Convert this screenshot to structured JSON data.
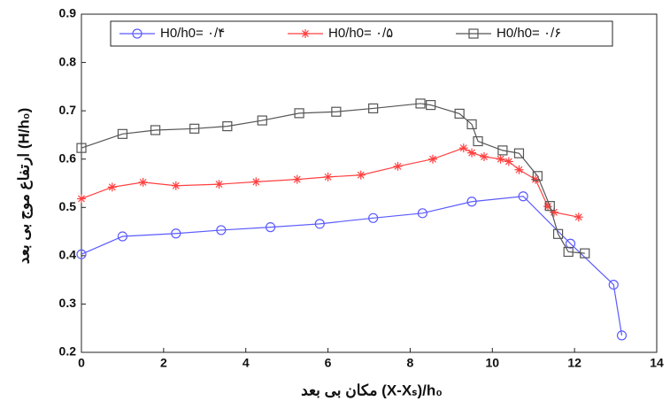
{
  "chart_data": {
    "type": "line",
    "x_label": "مکان بی بعد (X-Xₛ)/h₀",
    "y_label": "ارتفاع موج بی بعد (H/h₀)",
    "xlim": [
      0,
      14
    ],
    "xticks": [
      0,
      2,
      4,
      6,
      8,
      10,
      12,
      14
    ],
    "ylim": [
      0.2,
      0.9
    ],
    "yticks": [
      0.2,
      0.3,
      0.4,
      0.5,
      0.6,
      0.7,
      0.8,
      0.9
    ],
    "grid": false,
    "legend": "top",
    "series": [
      {
        "name": "H0/h0=  ۰/۴",
        "color": "#5b5bff",
        "marker": "circle",
        "x": [
          0,
          1,
          2.3,
          3.4,
          4.6,
          5.8,
          7.1,
          8.3,
          9.5,
          10.75,
          11.9,
          12.95,
          13.15
        ],
        "values": [
          0.403,
          0.44,
          0.446,
          0.453,
          0.459,
          0.466,
          0.478,
          0.488,
          0.512,
          0.523,
          0.425,
          0.34,
          0.235
        ]
      },
      {
        "name": "H0/h0=  ۰/۵",
        "color": "#ff4040",
        "marker": "star",
        "x": [
          0,
          0.75,
          1.5,
          2.3,
          3.35,
          4.25,
          5.25,
          6.0,
          6.8,
          7.7,
          8.55,
          9.3,
          9.5,
          9.8,
          10.2,
          10.4,
          10.65,
          11.05,
          11.35,
          11.5,
          12.1
        ],
        "values": [
          0.518,
          0.542,
          0.552,
          0.545,
          0.548,
          0.553,
          0.558,
          0.563,
          0.567,
          0.585,
          0.6,
          0.623,
          0.613,
          0.605,
          0.6,
          0.595,
          0.578,
          0.558,
          0.502,
          0.49,
          0.48
        ]
      },
      {
        "name": "H0/h0=  ۰/۶",
        "color": "#555555",
        "marker": "square",
        "x": [
          0,
          1,
          1.8,
          2.75,
          3.55,
          4.4,
          5.3,
          6.2,
          7.1,
          8.25,
          8.5,
          9.2,
          9.5,
          9.65,
          10.25,
          10.65,
          11.1,
          11.4,
          11.6,
          11.85,
          12.25
        ],
        "values": [
          0.623,
          0.652,
          0.66,
          0.663,
          0.668,
          0.68,
          0.695,
          0.698,
          0.705,
          0.715,
          0.712,
          0.694,
          0.672,
          0.637,
          0.618,
          0.612,
          0.565,
          0.503,
          0.445,
          0.408,
          0.405
        ]
      }
    ]
  }
}
